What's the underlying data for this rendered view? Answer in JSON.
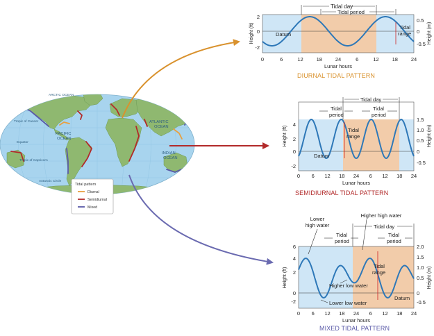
{
  "map": {
    "labels": {
      "arctic": "ARCTIC OCEAN",
      "atlantic1": "ATLANTIC",
      "atlantic2": "OCEAN",
      "pacific1": "PACIFIC",
      "pacific2": "OCEAN",
      "indian1": "INDIAN",
      "indian2": "OCEAN",
      "cancer": "Tropic of Cancer",
      "equator": "Equator",
      "capricorn": "Tropic of Capricorn",
      "antarctic": "Antarctic Circle"
    },
    "legend": {
      "title": "Tidal pattern",
      "items": [
        {
          "label": "Diurnal",
          "color": "#e8a040"
        },
        {
          "label": "Semidiurnal",
          "color": "#b22a2a"
        },
        {
          "label": "Mixed",
          "color": "#5a5aa8"
        }
      ]
    },
    "colors": {
      "ocean": "#a8d4ee",
      "land": "#8fb870",
      "diurnal": "#e8a040",
      "semidiurnal": "#b22a2a",
      "mixed": "#5a5aa8"
    }
  },
  "charts": [
    {
      "id": "diurnal",
      "caption": "DIURNAL TIDAL PATTERN",
      "caption_color": "#d9922e",
      "xlabel": "Lunar hours",
      "ylabel_left": "Height (ft)",
      "ylabel_right": "Height (m)",
      "x_ticks": [
        "0",
        "6",
        "12",
        "18",
        "24",
        "6",
        "12",
        "18",
        "24"
      ],
      "y_left_ticks": [
        "2",
        "0",
        "-2"
      ],
      "y_right_ticks": [
        "0.5",
        "0",
        "-0.5"
      ],
      "annotations": {
        "day": "Tidal day",
        "period": "Tidal period",
        "range1": "Tidal",
        "range2": "range",
        "datum": "Datum"
      }
    },
    {
      "id": "semidiurnal",
      "caption": "SEMIDIURNAL TIDAL PATTERN",
      "caption_color": "#b22a2a",
      "xlabel": "Lunar hours",
      "ylabel_left": "Height (ft)",
      "ylabel_right": "Height (m)",
      "x_ticks": [
        "0",
        "6",
        "12",
        "18",
        "24",
        "6",
        "12",
        "18",
        "24"
      ],
      "y_left_ticks": [
        "4",
        "2",
        "0",
        "-2"
      ],
      "y_right_ticks": [
        "1.5",
        "1.0",
        "0.5",
        "0",
        "-0.5"
      ],
      "annotations": {
        "day": "Tidal day",
        "period1a": "Tidal",
        "period1b": "period",
        "period2a": "Tidal",
        "period2b": "period",
        "range1": "Tidal",
        "range2": "range",
        "datum": "Datum"
      }
    },
    {
      "id": "mixed",
      "caption": "MIXED TIDAL PATTERN",
      "caption_color": "#5a5aa8",
      "xlabel": "Lunar hours",
      "ylabel_left": "Height (ft)",
      "ylabel_right": "Height (m)",
      "x_ticks": [
        "0",
        "6",
        "12",
        "18",
        "24",
        "6",
        "12",
        "18",
        "24"
      ],
      "y_left_ticks": [
        "6",
        "4",
        "2",
        "0",
        "-2"
      ],
      "y_right_ticks": [
        "2.0",
        "1.5",
        "1.0",
        "0.5",
        "0",
        "-0.5"
      ],
      "annotations": {
        "lhw1": "Lower",
        "lhw2": "high water",
        "hhw": "Higher high water",
        "day": "Tidal day",
        "period1a": "Tidal",
        "period1b": "period",
        "period2a": "Tidal",
        "period2b": "period",
        "range1": "Tidal",
        "range2": "range",
        "hlw": "Higher low water",
        "llw": "Lower low water",
        "datum": "Datum"
      }
    }
  ]
}
